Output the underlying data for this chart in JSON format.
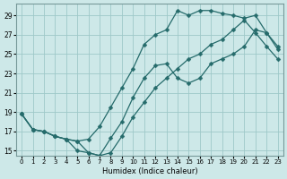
{
  "xlabel": "Humidex (Indice chaleur)",
  "xlim": [
    -0.5,
    23.5
  ],
  "ylim": [
    14.5,
    30.2
  ],
  "yticks": [
    15,
    17,
    19,
    21,
    23,
    25,
    27,
    29
  ],
  "xticks": [
    0,
    1,
    2,
    3,
    4,
    5,
    6,
    7,
    8,
    9,
    10,
    11,
    12,
    13,
    14,
    15,
    16,
    17,
    18,
    19,
    20,
    21,
    22,
    23
  ],
  "bg_color": "#cde8e8",
  "grid_color": "#9ec8c8",
  "line_color": "#256b6b",
  "line1_x": [
    0,
    1,
    2,
    3,
    4,
    5,
    6,
    7,
    8,
    9,
    10,
    11,
    12,
    13,
    14,
    15,
    16,
    17,
    18,
    19,
    20,
    21,
    22,
    23
  ],
  "line1_y": [
    18.8,
    17.2,
    17.0,
    16.5,
    16.2,
    16.0,
    16.2,
    17.5,
    19.5,
    21.5,
    23.5,
    26.0,
    27.0,
    27.5,
    29.5,
    29.0,
    29.5,
    29.5,
    29.2,
    29.0,
    28.7,
    29.0,
    27.2,
    25.8
  ],
  "line2_x": [
    0,
    1,
    2,
    3,
    4,
    5,
    6,
    7,
    8,
    9,
    10,
    11,
    12,
    13,
    14,
    15,
    16,
    17,
    18,
    19,
    20,
    21,
    22,
    23
  ],
  "line2_y": [
    18.8,
    17.2,
    17.0,
    16.5,
    16.2,
    16.0,
    14.8,
    14.5,
    16.3,
    18.0,
    20.5,
    22.5,
    23.8,
    24.0,
    22.5,
    22.0,
    22.5,
    24.0,
    24.5,
    25.0,
    25.8,
    27.5,
    27.2,
    25.5
  ],
  "line3_x": [
    0,
    1,
    2,
    3,
    4,
    5,
    6,
    7,
    8,
    9,
    10,
    11,
    12,
    13,
    14,
    15,
    16,
    17,
    18,
    19,
    20,
    21,
    22,
    23
  ],
  "line3_y": [
    18.8,
    17.2,
    17.0,
    16.5,
    16.2,
    15.0,
    14.8,
    14.5,
    14.8,
    16.5,
    18.5,
    20.0,
    21.5,
    22.5,
    23.5,
    24.5,
    25.0,
    26.0,
    26.5,
    27.5,
    28.5,
    27.2,
    25.8,
    24.5
  ]
}
